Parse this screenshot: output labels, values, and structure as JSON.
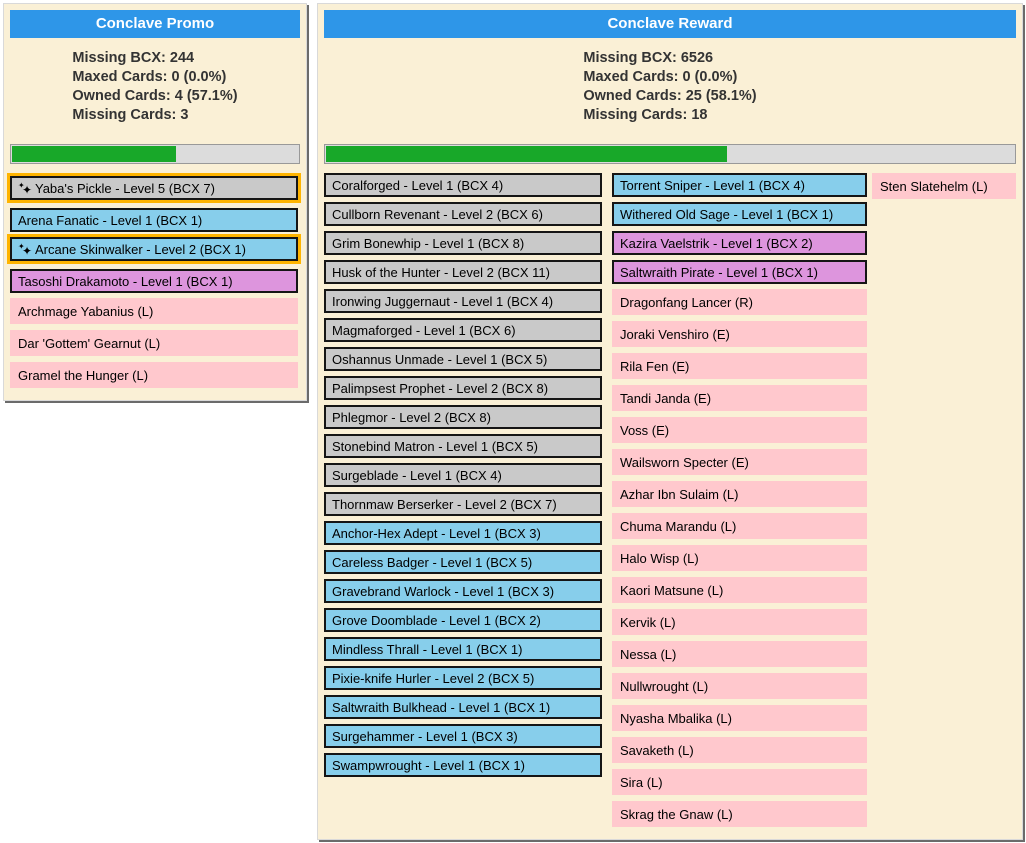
{
  "colors": {
    "header_bg": "#2E96E8",
    "header_text": "#FFFFFF",
    "panel_bg": "#FAF0D6",
    "stats_text": "#333333",
    "progress_fill": "#18A829",
    "progress_track": "#DCDCDC",
    "card_gray": "#C9C9C9",
    "card_blue": "#87CEEB",
    "card_violet": "#DD95DD",
    "card_pink": "#FFC8CD",
    "gold_border": "#FFB400",
    "card_border": "#151515"
  },
  "panels": [
    {
      "title": "Conclave Promo",
      "stats": [
        "Missing BCX: 244",
        "Maxed Cards: 0 (0.0%)",
        "Owned Cards: 4 (57.1%)",
        "Missing Cards: 3"
      ],
      "progress_percent": 57.1,
      "columns": [
        [
          {
            "label": "Yaba's Pickle - Level 5 (BCX 7)",
            "color": "gray",
            "gold": true,
            "icon": "sparkles"
          },
          {
            "label": "Arena Fanatic - Level 1 (BCX 1)",
            "color": "blue"
          },
          {
            "label": "Arcane Skinwalker - Level 2 (BCX 1)",
            "color": "blue",
            "gold": true,
            "icon": "sparkles"
          },
          {
            "label": "Tasoshi Drakamoto - Level 1 (BCX 1)",
            "color": "violet"
          },
          {
            "label": "Archmage Yabanius (L)",
            "color": "pink"
          },
          {
            "label": "Dar 'Gottem' Gearnut (L)",
            "color": "pink"
          },
          {
            "label": "Gramel the Hunger (L)",
            "color": "pink"
          }
        ]
      ]
    },
    {
      "title": "Conclave Reward",
      "stats": [
        "Missing BCX: 6526",
        "Maxed Cards: 0 (0.0%)",
        "Owned Cards: 25 (58.1%)",
        "Missing Cards: 18"
      ],
      "progress_percent": 58.1,
      "columns": [
        [
          {
            "label": "Coralforged - Level 1 (BCX 4)",
            "color": "gray"
          },
          {
            "label": "Cullborn Revenant - Level 2 (BCX 6)",
            "color": "gray"
          },
          {
            "label": "Grim Bonewhip - Level 1 (BCX 8)",
            "color": "gray"
          },
          {
            "label": "Husk of the Hunter - Level 2 (BCX 11)",
            "color": "gray"
          },
          {
            "label": "Ironwing Juggernaut - Level 1 (BCX 4)",
            "color": "gray"
          },
          {
            "label": "Magmaforged - Level 1 (BCX 6)",
            "color": "gray"
          },
          {
            "label": "Oshannus Unmade - Level 1 (BCX 5)",
            "color": "gray"
          },
          {
            "label": "Palimpsest Prophet - Level 2 (BCX 8)",
            "color": "gray"
          },
          {
            "label": "Phlegmor - Level 2 (BCX 8)",
            "color": "gray"
          },
          {
            "label": "Stonebind Matron - Level 1 (BCX 5)",
            "color": "gray"
          },
          {
            "label": "Surgeblade - Level 1 (BCX 4)",
            "color": "gray"
          },
          {
            "label": "Thornmaw Berserker - Level 2 (BCX 7)",
            "color": "gray"
          },
          {
            "label": "Anchor-Hex Adept - Level 1 (BCX 3)",
            "color": "blue"
          },
          {
            "label": "Careless Badger - Level 1 (BCX 5)",
            "color": "blue"
          },
          {
            "label": "Gravebrand Warlock - Level 1 (BCX 3)",
            "color": "blue"
          },
          {
            "label": "Grove Doomblade - Level 1 (BCX 2)",
            "color": "blue"
          },
          {
            "label": "Mindless Thrall - Level 1 (BCX 1)",
            "color": "blue"
          },
          {
            "label": "Pixie-knife Hurler - Level 2 (BCX 5)",
            "color": "blue"
          },
          {
            "label": "Saltwraith Bulkhead - Level 1 (BCX 1)",
            "color": "blue"
          },
          {
            "label": "Surgehammer - Level 1 (BCX 3)",
            "color": "blue"
          },
          {
            "label": "Swampwrought - Level 1 (BCX 1)",
            "color": "blue"
          }
        ],
        [
          {
            "label": "Torrent Sniper - Level 1 (BCX 4)",
            "color": "blue"
          },
          {
            "label": "Withered Old Sage - Level 1 (BCX 1)",
            "color": "blue"
          },
          {
            "label": "Kazira Vaelstrik - Level 1 (BCX 2)",
            "color": "violet"
          },
          {
            "label": "Saltwraith Pirate - Level 1 (BCX 1)",
            "color": "violet"
          },
          {
            "label": "Dragonfang Lancer (R)",
            "color": "pink"
          },
          {
            "label": "Joraki Venshiro (E)",
            "color": "pink"
          },
          {
            "label": "Rila Fen (E)",
            "color": "pink"
          },
          {
            "label": "Tandi Janda (E)",
            "color": "pink"
          },
          {
            "label": "Voss (E)",
            "color": "pink"
          },
          {
            "label": "Wailsworn Specter (E)",
            "color": "pink"
          },
          {
            "label": "Azhar Ibn Sulaim (L)",
            "color": "pink"
          },
          {
            "label": "Chuma Marandu (L)",
            "color": "pink"
          },
          {
            "label": "Halo Wisp (L)",
            "color": "pink"
          },
          {
            "label": "Kaori Matsune (L)",
            "color": "pink"
          },
          {
            "label": "Kervik (L)",
            "color": "pink"
          },
          {
            "label": "Nessa (L)",
            "color": "pink"
          },
          {
            "label": "Nullwrought (L)",
            "color": "pink"
          },
          {
            "label": "Nyasha Mbalika (L)",
            "color": "pink"
          },
          {
            "label": "Savaketh (L)",
            "color": "pink"
          },
          {
            "label": "Sira (L)",
            "color": "pink"
          },
          {
            "label": "Skrag the Gnaw (L)",
            "color": "pink"
          }
        ],
        [
          {
            "label": "Sten Slatehelm (L)",
            "color": "pink"
          }
        ]
      ]
    }
  ]
}
